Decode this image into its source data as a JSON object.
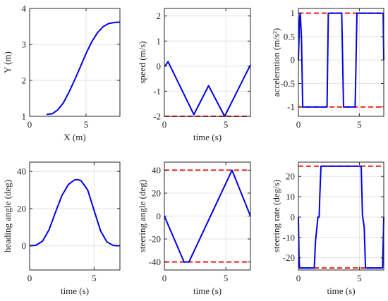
{
  "chart_data": [
    {
      "type": "line",
      "xlabel": "X (m)",
      "ylabel": "Y (m)",
      "xlim": [
        0,
        8
      ],
      "ylim": [
        1,
        4
      ],
      "xticks": [
        0,
        5
      ],
      "yticks": [
        1,
        2,
        3,
        4
      ],
      "grid": true,
      "series": [
        {
          "color": "#0000ee",
          "x": [
            1.5,
            2.0,
            2.5,
            3.0,
            3.5,
            4.0,
            4.5,
            5.0,
            5.5,
            6.0,
            6.5,
            7.0,
            7.5,
            8.0
          ],
          "y": [
            1.05,
            1.07,
            1.18,
            1.38,
            1.68,
            2.02,
            2.38,
            2.75,
            3.07,
            3.32,
            3.49,
            3.58,
            3.61,
            3.62
          ]
        }
      ],
      "limits": []
    },
    {
      "type": "line",
      "xlabel": "time (s)",
      "ylabel": "speed (m/s)",
      "xlim": [
        0,
        7
      ],
      "ylim": [
        -2,
        2.3
      ],
      "xticks": [
        0,
        5
      ],
      "yticks": [
        -2,
        -1,
        0,
        1,
        2
      ],
      "grid": true,
      "series": [
        {
          "color": "#0000ee",
          "x": [
            0.05,
            0.3,
            2.4,
            3.6,
            4.9,
            7.0
          ],
          "y": [
            0.0,
            0.18,
            -1.93,
            -0.78,
            -2.0,
            0.05
          ]
        }
      ],
      "limits": [
        -2
      ]
    },
    {
      "type": "line",
      "xlabel": "",
      "ylabel": "acceleration (m/s²)",
      "xlim": [
        0,
        7
      ],
      "ylim": [
        -1.2,
        1.1
      ],
      "xticks": [
        0,
        5
      ],
      "yticks": [
        -1,
        -0.5,
        0,
        0.5,
        1
      ],
      "grid": true,
      "series": [
        {
          "color": "#0000ee",
          "x": [
            0.0,
            0.1,
            0.15,
            0.25,
            0.35,
            2.35,
            2.45,
            3.55,
            3.7,
            4.65,
            4.8,
            6.95,
            7.0
          ],
          "y": [
            0.0,
            0.9,
            1.0,
            0.5,
            -1.0,
            -1.0,
            1.0,
            1.0,
            -1.0,
            -1.0,
            1.0,
            1.0,
            0.0
          ]
        }
      ],
      "limits": [
        1,
        -1
      ]
    },
    {
      "type": "line",
      "xlabel": "time (s)",
      "ylabel": "heading angle (deg)",
      "xlim": [
        0,
        7
      ],
      "ylim": [
        -13,
        45
      ],
      "xticks": [
        0,
        5
      ],
      "yticks": [
        0,
        20,
        40
      ],
      "grid": true,
      "series": [
        {
          "color": "#0000ee",
          "x": [
            0.0,
            0.5,
            1.0,
            1.5,
            2.0,
            2.5,
            3.0,
            3.5,
            3.75,
            4.0,
            4.5,
            5.0,
            5.5,
            6.0,
            6.5,
            7.0
          ],
          "y": [
            0.0,
            0.3,
            2.5,
            8.5,
            18.0,
            27.0,
            33.0,
            35.5,
            35.6,
            35.0,
            30.0,
            19.0,
            8.0,
            2.0,
            0.2,
            0.0
          ]
        }
      ],
      "limits": []
    },
    {
      "type": "line",
      "xlabel": "time (s)",
      "ylabel": "steering angle (deg)",
      "xlim": [
        0,
        7
      ],
      "ylim": [
        -47,
        47
      ],
      "xticks": [
        0,
        5
      ],
      "yticks": [
        -40,
        -20,
        0,
        20,
        40
      ],
      "grid": true,
      "series": [
        {
          "color": "#0000ee",
          "x": [
            0.0,
            1.6,
            2.0,
            5.5,
            7.0
          ],
          "y": [
            0.0,
            -40.0,
            -40.0,
            40.0,
            0.0
          ]
        }
      ],
      "limits": [
        40,
        -40
      ]
    },
    {
      "type": "line",
      "xlabel": "time (s)",
      "ylabel": "steering rate (deg/s)",
      "xlim": [
        0,
        7
      ],
      "ylim": [
        -26,
        27
      ],
      "xticks": [
        0,
        5
      ],
      "yticks": [
        -20,
        -10,
        0,
        10,
        20
      ],
      "grid": true,
      "series": [
        {
          "color": "#0000ee",
          "x": [
            0.0,
            0.05,
            0.1,
            1.3,
            1.4,
            1.6,
            1.7,
            1.75,
            1.85,
            2.0,
            5.15,
            5.25,
            5.4,
            5.5,
            6.9,
            7.0
          ],
          "y": [
            0.0,
            -20.0,
            -25.0,
            -25.0,
            -12.0,
            0.0,
            0.0,
            10.0,
            25.0,
            25.0,
            25.0,
            1.0,
            -5.0,
            -25.0,
            -25.0,
            0.0
          ]
        }
      ],
      "limits": [
        25,
        -25
      ]
    }
  ]
}
